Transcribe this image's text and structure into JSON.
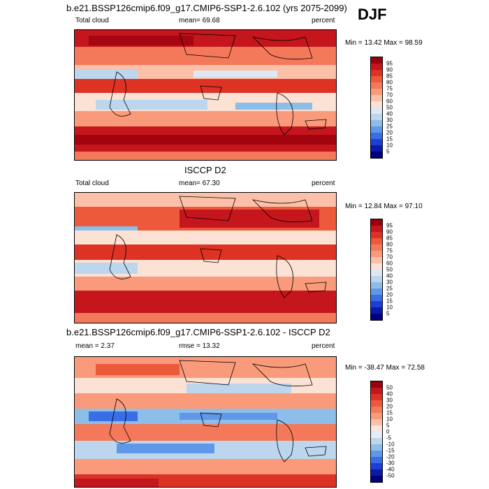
{
  "season": "DJF",
  "panels": [
    {
      "title": "b.e21.BSSP126cmip6.f09_g17.CMIP6-SSP1-2.6.102 (yrs 2075-2099)",
      "left_label": "Total cloud",
      "center_label": "mean=  69.68",
      "right_label": "percent",
      "minmax": "Min =  13.42 Max =  98.59",
      "levels": [
        "95",
        "90",
        "85",
        "80",
        "75",
        "70",
        "60",
        "50",
        "40",
        "30",
        "25",
        "20",
        "15",
        "10",
        "5"
      ],
      "colors": [
        "#99000d",
        "#c4161c",
        "#dd3224",
        "#ec5a3b",
        "#f4795a",
        "#f99a7a",
        "#fcc0a8",
        "#fbe2d4",
        "#dde8f2",
        "#bcd6ee",
        "#8dbde9",
        "#5f98e8",
        "#3a6ee6",
        "#1d3fd9",
        "#0b1aa8",
        "#000080"
      ]
    },
    {
      "title": "ISCCP D2",
      "left_label": "Total cloud",
      "center_label": "mean=  67.30",
      "right_label": "percent",
      "minmax": "Min =  12.84 Max =  97.10",
      "levels": [
        "95",
        "90",
        "85",
        "80",
        "75",
        "70",
        "60",
        "50",
        "40",
        "30",
        "25",
        "20",
        "15",
        "10",
        "5"
      ],
      "colors": [
        "#99000d",
        "#c4161c",
        "#dd3224",
        "#ec5a3b",
        "#f4795a",
        "#f99a7a",
        "#fcc0a8",
        "#fbe2d4",
        "#dde8f2",
        "#bcd6ee",
        "#8dbde9",
        "#5f98e8",
        "#3a6ee6",
        "#1d3fd9",
        "#0b1aa8",
        "#000080"
      ]
    },
    {
      "title": "b.e21.BSSP126cmip6.f09_g17.CMIP6-SSP1-2.6.102 - ISCCP D2",
      "left_label": "mean =   2.37",
      "center_label": "rmse =  13.32",
      "right_label": "percent",
      "minmax": "Min = -38.47 Max =  72.58",
      "levels": [
        "50",
        "40",
        "30",
        "20",
        "15",
        "10",
        "5",
        "0",
        "-5",
        "-10",
        "-15",
        "-20",
        "-30",
        "-40",
        "-50"
      ],
      "colors": [
        "#99000d",
        "#c4161c",
        "#dd3224",
        "#ec5a3b",
        "#f4795a",
        "#f99a7a",
        "#fcc0a8",
        "#fde7dc",
        "#e3ecf7",
        "#bcd6ee",
        "#8dbde9",
        "#5f98e8",
        "#3a6ee6",
        "#1d3fd9",
        "#0b1aa8",
        "#000080"
      ]
    }
  ]
}
